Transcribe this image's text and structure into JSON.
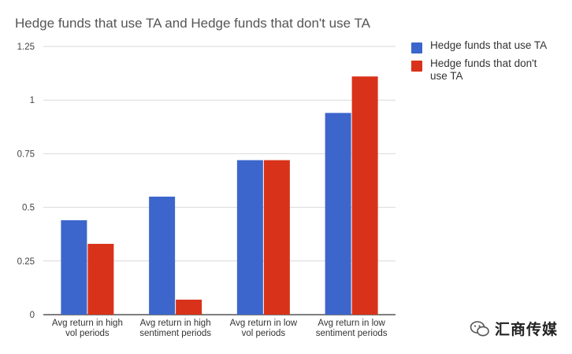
{
  "chart_data": {
    "type": "bar",
    "title": "Hedge funds that use TA and Hedge funds that don't use TA",
    "categories": [
      [
        "Avg return in high",
        "vol periods"
      ],
      [
        "Avg return in high",
        "sentiment periods"
      ],
      [
        "Avg return in low",
        "vol periods"
      ],
      [
        "Avg return in low",
        "sentiment periods"
      ]
    ],
    "series": [
      {
        "name": "Hedge funds that use TA",
        "color": "#3c66cc",
        "values": [
          0.44,
          0.55,
          0.72,
          0.94
        ]
      },
      {
        "name": "Hedge funds that don't use TA",
        "color": "#d9321a",
        "values": [
          0.33,
          0.07,
          0.72,
          1.11
        ]
      }
    ],
    "ylim": [
      0,
      1.25
    ],
    "yticks": [
      "0",
      "0.25",
      "0.5",
      "0.75",
      "1",
      "1.25"
    ],
    "ytick_values": [
      0,
      0.25,
      0.5,
      0.75,
      1,
      1.25
    ],
    "grid": true,
    "legend_position": "right"
  },
  "watermark": {
    "text": "汇商传媒",
    "icon": "wechat-icon"
  }
}
